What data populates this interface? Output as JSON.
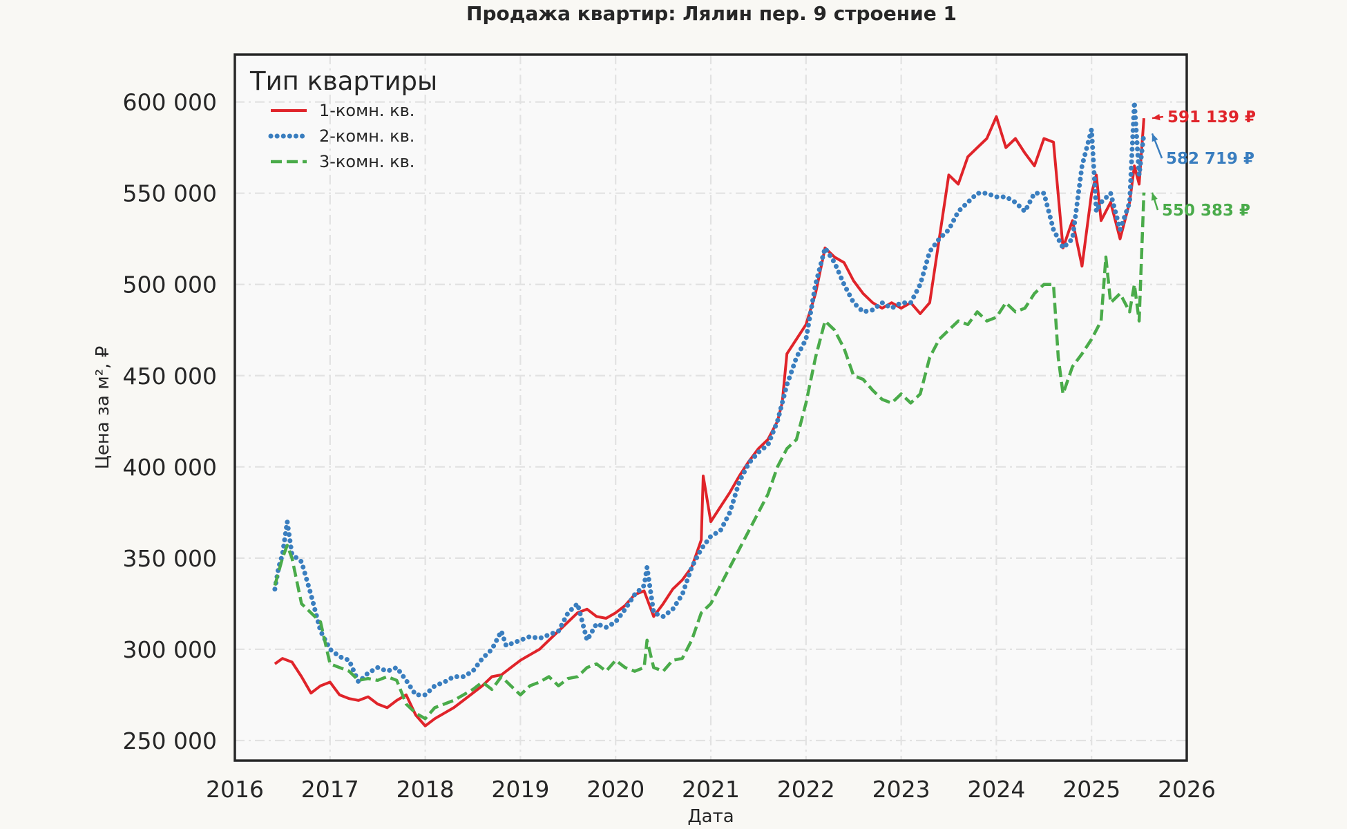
{
  "chart_data": {
    "type": "line",
    "title": "Продажа квартир: Лялин пер. 9 строение 1",
    "xlabel": "Дата",
    "ylabel": "Цена за м², ₽",
    "xlim": [
      2016.0,
      2026.0
    ],
    "ylim": [
      239000,
      626000
    ],
    "x_ticks": [
      2016,
      2017,
      2018,
      2019,
      2020,
      2021,
      2022,
      2023,
      2024,
      2025,
      2026
    ],
    "x_tick_labels": [
      "2016",
      "2017",
      "2018",
      "2019",
      "2020",
      "2021",
      "2022",
      "2023",
      "2024",
      "2025",
      "2026"
    ],
    "y_ticks": [
      250000,
      300000,
      350000,
      400000,
      450000,
      500000,
      550000,
      600000
    ],
    "y_tick_labels": [
      "250 000",
      "300 000",
      "350 000",
      "400 000",
      "450 000",
      "500 000",
      "550 000",
      "600 000"
    ],
    "grid": true,
    "legend": {
      "title": "Тип квартиры",
      "placement": "top-left"
    },
    "series": [
      {
        "name": "1-комн. кв.",
        "color": "#e0242a",
        "style": "solid",
        "end_label": "591 139 ₽",
        "x": [
          2016.42,
          2016.5,
          2016.6,
          2016.7,
          2016.8,
          2016.9,
          2017.0,
          2017.1,
          2017.2,
          2017.3,
          2017.4,
          2017.5,
          2017.6,
          2017.7,
          2017.8,
          2017.9,
          2018.0,
          2018.1,
          2018.2,
          2018.3,
          2018.4,
          2018.5,
          2018.6,
          2018.7,
          2018.8,
          2018.9,
          2019.0,
          2019.1,
          2019.2,
          2019.3,
          2019.4,
          2019.5,
          2019.6,
          2019.7,
          2019.8,
          2019.9,
          2020.0,
          2020.1,
          2020.2,
          2020.3,
          2020.35,
          2020.4,
          2020.5,
          2020.6,
          2020.7,
          2020.8,
          2020.9,
          2020.92,
          2021.0,
          2021.1,
          2021.2,
          2021.3,
          2021.4,
          2021.5,
          2021.6,
          2021.7,
          2021.75,
          2021.8,
          2021.9,
          2022.0,
          2022.1,
          2022.2,
          2022.3,
          2022.4,
          2022.5,
          2022.6,
          2022.7,
          2022.8,
          2022.9,
          2023.0,
          2023.1,
          2023.2,
          2023.3,
          2023.4,
          2023.5,
          2023.6,
          2023.7,
          2023.8,
          2023.9,
          2024.0,
          2024.1,
          2024.2,
          2024.3,
          2024.4,
          2024.5,
          2024.6,
          2024.7,
          2024.8,
          2024.9,
          2025.0,
          2025.05,
          2025.1,
          2025.2,
          2025.3,
          2025.4,
          2025.45,
          2025.5,
          2025.55
        ],
        "y": [
          292000,
          295000,
          293000,
          285000,
          276000,
          280000,
          282000,
          275000,
          273000,
          272000,
          274000,
          270000,
          268000,
          272000,
          275000,
          264000,
          258000,
          262000,
          265000,
          268000,
          272000,
          276000,
          280000,
          285000,
          286000,
          290000,
          294000,
          297000,
          300000,
          305000,
          310000,
          315000,
          320000,
          322000,
          318000,
          317000,
          320000,
          324000,
          330000,
          332000,
          325000,
          318000,
          325000,
          333000,
          338000,
          345000,
          360000,
          395000,
          370000,
          378000,
          386000,
          395000,
          403000,
          410000,
          415000,
          425000,
          435000,
          462000,
          470000,
          478000,
          495000,
          520000,
          515000,
          512000,
          502000,
          495000,
          490000,
          487000,
          490000,
          487000,
          490000,
          484000,
          490000,
          525000,
          560000,
          555000,
          570000,
          575000,
          580000,
          592000,
          575000,
          580000,
          572000,
          565000,
          580000,
          578000,
          520000,
          535000,
          510000,
          550000,
          560000,
          535000,
          545000,
          525000,
          545000,
          565000,
          555000,
          591139
        ]
      },
      {
        "name": "2-комн. кв.",
        "color": "#3a7ebf",
        "style": "dotted",
        "end_label": "582 719 ₽",
        "x": [
          2016.42,
          2016.46,
          2016.5,
          2016.55,
          2016.6,
          2016.7,
          2016.8,
          2016.9,
          2017.0,
          2017.1,
          2017.2,
          2017.3,
          2017.4,
          2017.5,
          2017.6,
          2017.7,
          2017.8,
          2017.9,
          2018.0,
          2018.1,
          2018.2,
          2018.3,
          2018.4,
          2018.5,
          2018.6,
          2018.7,
          2018.8,
          2018.85,
          2018.9,
          2019.0,
          2019.1,
          2019.2,
          2019.3,
          2019.4,
          2019.5,
          2019.6,
          2019.7,
          2019.8,
          2019.9,
          2020.0,
          2020.1,
          2020.2,
          2020.3,
          2020.33,
          2020.4,
          2020.5,
          2020.6,
          2020.7,
          2020.8,
          2020.9,
          2021.0,
          2021.1,
          2021.2,
          2021.3,
          2021.4,
          2021.5,
          2021.6,
          2021.7,
          2021.8,
          2021.9,
          2022.0,
          2022.1,
          2022.2,
          2022.3,
          2022.4,
          2022.5,
          2022.6,
          2022.7,
          2022.8,
          2022.9,
          2023.0,
          2023.1,
          2023.2,
          2023.3,
          2023.4,
          2023.5,
          2023.6,
          2023.7,
          2023.8,
          2023.9,
          2024.0,
          2024.1,
          2024.2,
          2024.3,
          2024.4,
          2024.5,
          2024.6,
          2024.7,
          2024.8,
          2024.9,
          2025.0,
          2025.05,
          2025.1,
          2025.2,
          2025.3,
          2025.4,
          2025.45,
          2025.5,
          2025.55
        ],
        "y": [
          333000,
          345000,
          352000,
          370000,
          352000,
          348000,
          330000,
          310000,
          300000,
          296000,
          294000,
          282000,
          287000,
          290000,
          288000,
          290000,
          283000,
          275000,
          275000,
          280000,
          282000,
          285000,
          285000,
          288000,
          295000,
          300000,
          310000,
          302000,
          303000,
          305000,
          307000,
          306000,
          308000,
          310000,
          320000,
          325000,
          305000,
          314000,
          312000,
          315000,
          322000,
          330000,
          335000,
          345000,
          320000,
          318000,
          322000,
          330000,
          345000,
          355000,
          362000,
          365000,
          375000,
          392000,
          402000,
          408000,
          412000,
          425000,
          445000,
          460000,
          470000,
          500000,
          520000,
          512000,
          500000,
          490000,
          485000,
          486000,
          490000,
          487000,
          490000,
          490000,
          500000,
          518000,
          525000,
          530000,
          540000,
          545000,
          550000,
          550000,
          548000,
          548000,
          545000,
          540000,
          550000,
          550000,
          530000,
          520000,
          525000,
          565000,
          585000,
          540000,
          545000,
          550000,
          530000,
          545000,
          600000,
          560000,
          582719
        ]
      },
      {
        "name": "3-комн. кв.",
        "color": "#4aab4a",
        "style": "dashed",
        "end_label": "550 383 ₽",
        "x": [
          2016.42,
          2016.5,
          2016.55,
          2016.6,
          2016.7,
          2016.8,
          2016.9,
          2017.0,
          2017.1,
          2017.2,
          2017.3,
          2017.4,
          2017.5,
          2017.6,
          2017.7,
          2017.8,
          2017.9,
          2018.0,
          2018.1,
          2018.2,
          2018.3,
          2018.4,
          2018.5,
          2018.6,
          2018.7,
          2018.8,
          2018.9,
          2019.0,
          2019.1,
          2019.2,
          2019.3,
          2019.4,
          2019.5,
          2019.6,
          2019.7,
          2019.8,
          2019.9,
          2020.0,
          2020.1,
          2020.2,
          2020.3,
          2020.33,
          2020.4,
          2020.5,
          2020.6,
          2020.7,
          2020.8,
          2020.9,
          2021.0,
          2021.1,
          2021.2,
          2021.3,
          2021.4,
          2021.5,
          2021.6,
          2021.7,
          2021.8,
          2021.9,
          2022.0,
          2022.1,
          2022.2,
          2022.3,
          2022.4,
          2022.5,
          2022.6,
          2022.7,
          2022.8,
          2022.9,
          2023.0,
          2023.1,
          2023.2,
          2023.3,
          2023.4,
          2023.5,
          2023.6,
          2023.7,
          2023.8,
          2023.9,
          2024.0,
          2024.1,
          2024.2,
          2024.3,
          2024.4,
          2024.5,
          2024.6,
          2024.65,
          2024.7,
          2024.8,
          2024.9,
          2025.0,
          2025.1,
          2025.15,
          2025.2,
          2025.3,
          2025.4,
          2025.45,
          2025.5,
          2025.55
        ],
        "y": [
          335000,
          350000,
          357000,
          350000,
          325000,
          320000,
          315000,
          292000,
          290000,
          288000,
          283000,
          284000,
          283000,
          285000,
          283000,
          270000,
          265000,
          262000,
          268000,
          270000,
          272000,
          275000,
          278000,
          282000,
          278000,
          285000,
          280000,
          275000,
          280000,
          282000,
          285000,
          280000,
          284000,
          285000,
          290000,
          292000,
          288000,
          294000,
          290000,
          288000,
          290000,
          305000,
          290000,
          288000,
          294000,
          295000,
          305000,
          320000,
          325000,
          335000,
          345000,
          355000,
          365000,
          375000,
          385000,
          400000,
          410000,
          415000,
          435000,
          460000,
          480000,
          475000,
          465000,
          450000,
          448000,
          442000,
          437000,
          435000,
          440000,
          435000,
          440000,
          460000,
          470000,
          475000,
          480000,
          478000,
          485000,
          480000,
          482000,
          490000,
          485000,
          487000,
          495000,
          500000,
          500000,
          460000,
          440000,
          455000,
          462000,
          470000,
          480000,
          515000,
          490000,
          495000,
          485000,
          500000,
          480000,
          550383
        ]
      }
    ]
  }
}
